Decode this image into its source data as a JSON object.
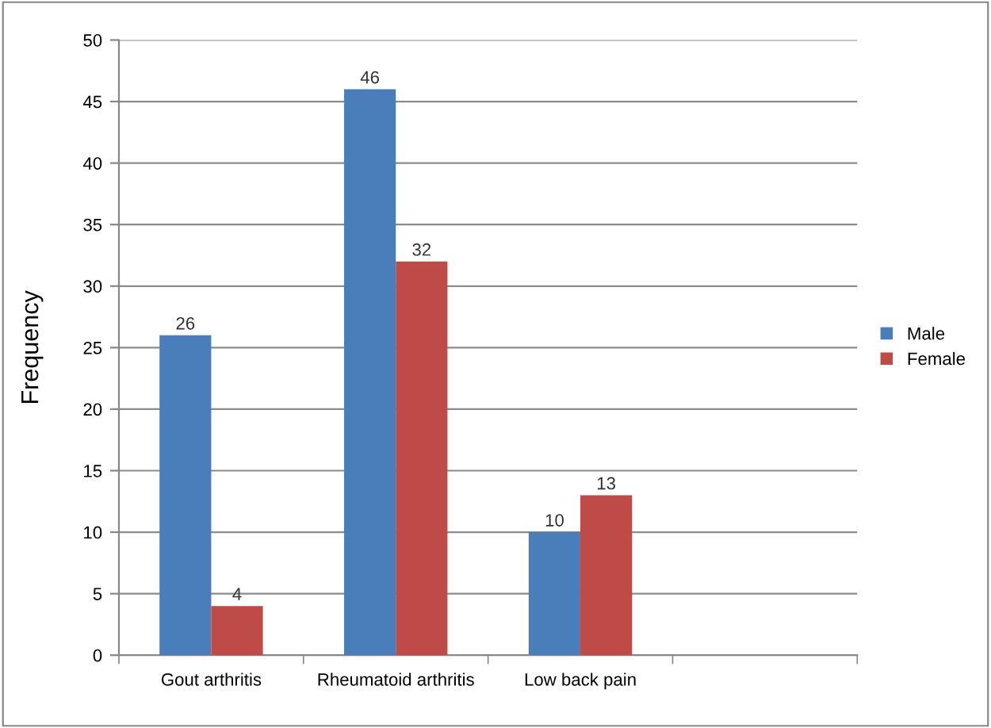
{
  "chart_data": {
    "type": "bar",
    "ylabel": "Frequency",
    "categories": [
      "Gout arthritis",
      "Rheumatoid arthritis",
      "Low back pain",
      null
    ],
    "series": [
      {
        "name": "Male",
        "color": "#4a7ebb",
        "values": [
          26,
          46,
          10,
          null
        ]
      },
      {
        "name": "Female",
        "color": "#be4b48",
        "values": [
          4,
          32,
          13,
          null
        ]
      }
    ],
    "ylim": [
      0,
      50
    ],
    "yticks": [
      0,
      5,
      10,
      15,
      20,
      25,
      30,
      35,
      40,
      45,
      50
    ],
    "grid": "y",
    "legend": "right",
    "data_labels": true
  }
}
